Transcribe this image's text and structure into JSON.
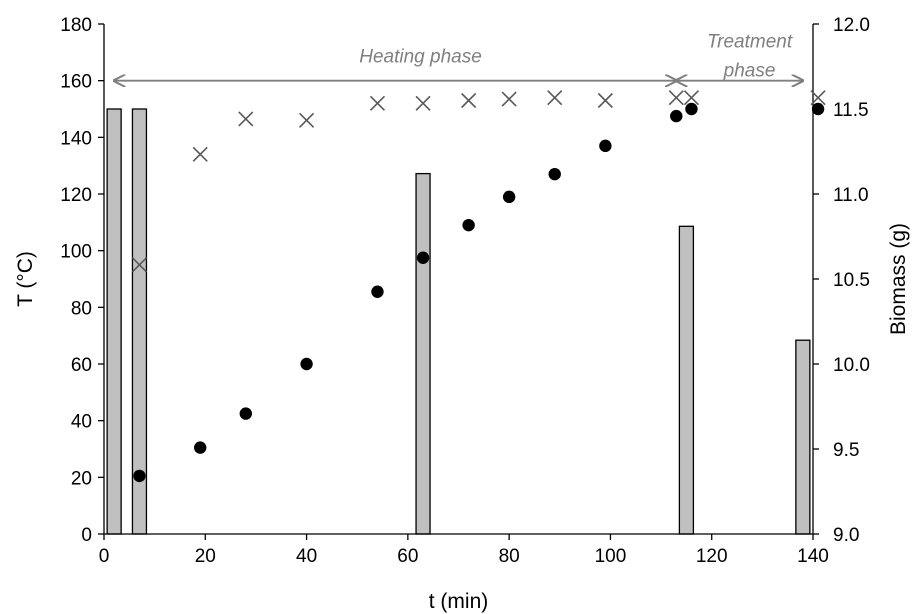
{
  "chart_data": {
    "type": "combo",
    "xlabel": "t (min)",
    "ylabel_left": "T (°C)",
    "ylabel_right": "Biomass (g)",
    "xlim": [
      0,
      140
    ],
    "ylim_left": [
      0,
      180
    ],
    "ylim_right": [
      9.0,
      12.0
    ],
    "xticks": [
      "0",
      "20",
      "40",
      "60",
      "80",
      "100",
      "120",
      "140"
    ],
    "yticks_left": [
      "0",
      "20",
      "40",
      "60",
      "80",
      "100",
      "120",
      "140",
      "160",
      "180"
    ],
    "yticks_right": [
      "9.0",
      "9.5",
      "10.0",
      "10.5",
      "11.0",
      "11.5",
      "12.0"
    ],
    "grid": false,
    "annotations": {
      "heating": {
        "label": "Heating phase",
        "x_start": 2,
        "x_end": 113
      },
      "treatment_line1": "Treatment",
      "treatment_line2": "phase",
      "treatment": {
        "x_start": 113,
        "x_end": 138
      }
    },
    "series": [
      {
        "marker": "circle",
        "axis": "left",
        "x": [
          7,
          19,
          28,
          40,
          54,
          63,
          72,
          80,
          89,
          99,
          113,
          116,
          141
        ],
        "y": [
          20.5,
          30.5,
          42.5,
          60,
          85.5,
          97.5,
          109,
          119,
          127,
          137,
          147.5,
          150,
          150
        ]
      },
      {
        "marker": "x",
        "axis": "left",
        "x": [
          7,
          19,
          28,
          40,
          54,
          63,
          72,
          80,
          89,
          99,
          113,
          116,
          141
        ],
        "y": [
          95,
          134,
          146.5,
          146,
          152,
          152,
          153,
          153.5,
          154,
          153,
          154,
          154,
          154
        ]
      },
      {
        "marker": "bar",
        "axis": "right",
        "x": [
          2,
          7,
          63,
          115,
          138
        ],
        "y": [
          11.5,
          11.5,
          11.12,
          10.81,
          10.14
        ]
      }
    ],
    "colors": {
      "bar_fill": "#c0c0c0",
      "bar_stroke": "#000000",
      "circle": "#000000",
      "cross": "#595959",
      "arrow": "#7f7f7f"
    }
  }
}
